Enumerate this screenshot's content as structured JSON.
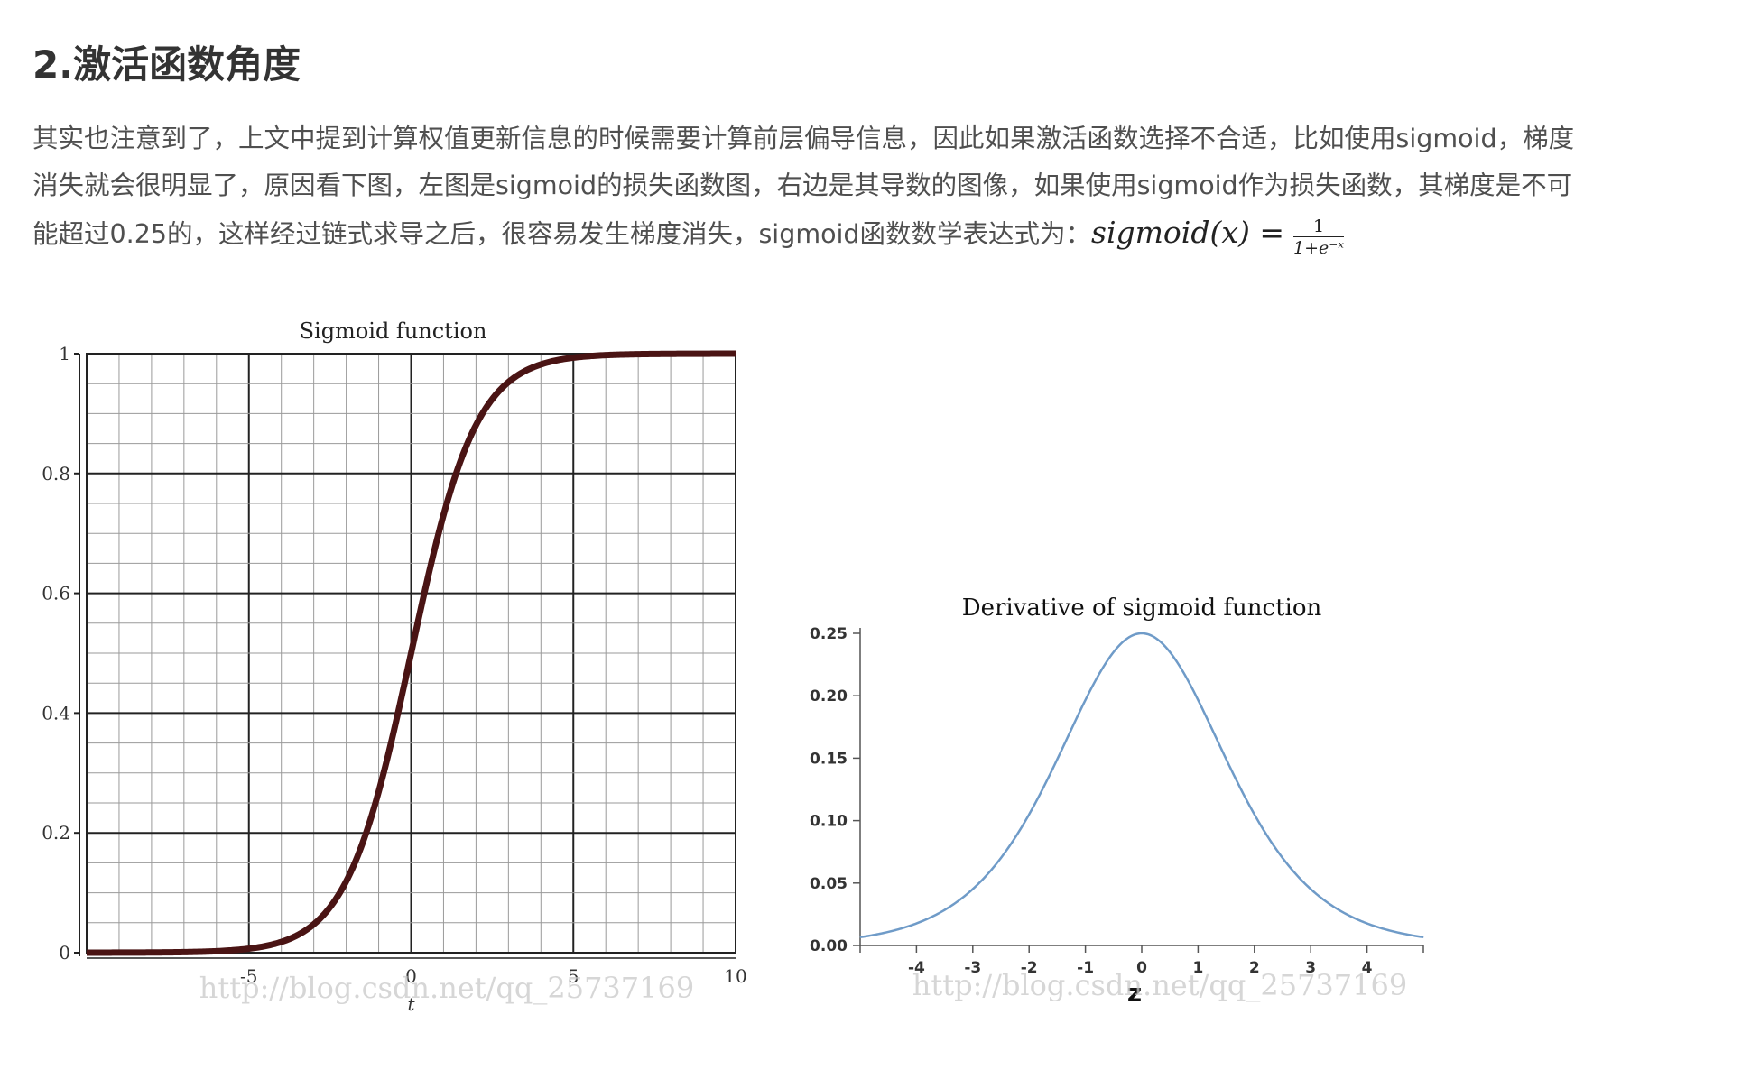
{
  "heading": "2.激活函数角度",
  "paragraph": {
    "line1": "其实也注意到了，上文中提到计算权值更新信息的时候需要计算前层偏导信息，因此如果激活函数选择不合适，比如使用sigmoid，梯度",
    "line2": "消失就会很明显了，原因看下图，左图是sigmoid的损失函数图，右边是其导数的图像，如果使用sigmoid作为损失函数，其梯度是不可",
    "line3": "能超过0.25的，这样经过链式求导之后，很容易发生梯度消失，sigmoid函数数学表达式为：",
    "formula_lhs": "sigmoid(x) =",
    "formula_num": "1",
    "formula_den": "1+e⁻ˣ"
  },
  "chart_data": [
    {
      "type": "line",
      "title": "Sigmoid function",
      "xlabel": "t",
      "ylabel": "",
      "xlim": [
        -10,
        10
      ],
      "ylim": [
        0,
        1
      ],
      "x_ticks": [
        "-5",
        "0",
        "5",
        "10"
      ],
      "y_ticks": [
        "0",
        "0.2",
        "0.4",
        "0.6",
        "0.8",
        "1"
      ],
      "grid": true,
      "color": "#4a1414",
      "watermark": "http://blog.csdn.net/qq_25737169",
      "series": [
        {
          "x": [
            -10,
            -9,
            -8,
            -7,
            -6,
            -5,
            -4,
            -3,
            -2,
            -1,
            0,
            1,
            2,
            3,
            4,
            5,
            6,
            7,
            8,
            9,
            10
          ],
          "values": [
            0.0,
            0.0001,
            0.0003,
            0.0009,
            0.0025,
            0.0067,
            0.018,
            0.047,
            0.119,
            0.269,
            0.5,
            0.731,
            0.881,
            0.953,
            0.982,
            0.993,
            0.998,
            0.999,
            1.0,
            1.0,
            1.0
          ]
        }
      ]
    },
    {
      "type": "line",
      "title": "Derivative of sigmoid function",
      "xlabel": "z",
      "ylabel": "",
      "xlim": [
        -5,
        5
      ],
      "ylim": [
        0,
        0.25
      ],
      "x_ticks": [
        "-4",
        "-3",
        "-2",
        "-1",
        "0",
        "1",
        "2",
        "3",
        "4"
      ],
      "y_ticks": [
        "0.00",
        "0.05",
        "0.10",
        "0.15",
        "0.20",
        "0.25"
      ],
      "grid": false,
      "color": "#6f9bc8",
      "watermark": "http://blog.csdn.net/qq_25737169",
      "series": [
        {
          "x": [
            -5,
            -4,
            -3,
            -2,
            -1,
            0,
            1,
            2,
            3,
            4,
            5
          ],
          "values": [
            0.0066,
            0.0177,
            0.0452,
            0.105,
            0.1966,
            0.25,
            0.1966,
            0.105,
            0.0452,
            0.0177,
            0.0066
          ]
        }
      ]
    }
  ]
}
